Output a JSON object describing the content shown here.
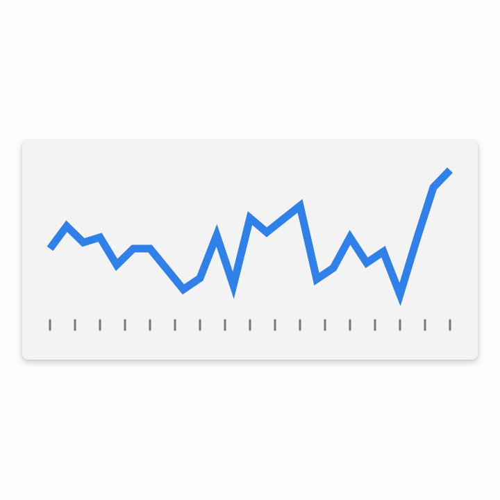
{
  "chart_data": {
    "type": "line",
    "title": "",
    "xlabel": "",
    "ylabel": "",
    "grid": false,
    "legend": "none",
    "ticks": {
      "count": 17,
      "color": "#777777"
    },
    "series": [
      {
        "color": "#2f80e8",
        "values": [
          40.0,
          62.0,
          46.0,
          51.0,
          24.0,
          40.0,
          40.0,
          20.0,
          0.0,
          11.0,
          53.0,
          4.0,
          70.0,
          56.0,
          69.0,
          82.0,
          10.0,
          21.0,
          51.0,
          26.0,
          37.0,
          -5.0,
          49.0,
          100.0,
          117.0
        ]
      }
    ],
    "ylim": [
      -5.0,
      117.0
    ]
  }
}
